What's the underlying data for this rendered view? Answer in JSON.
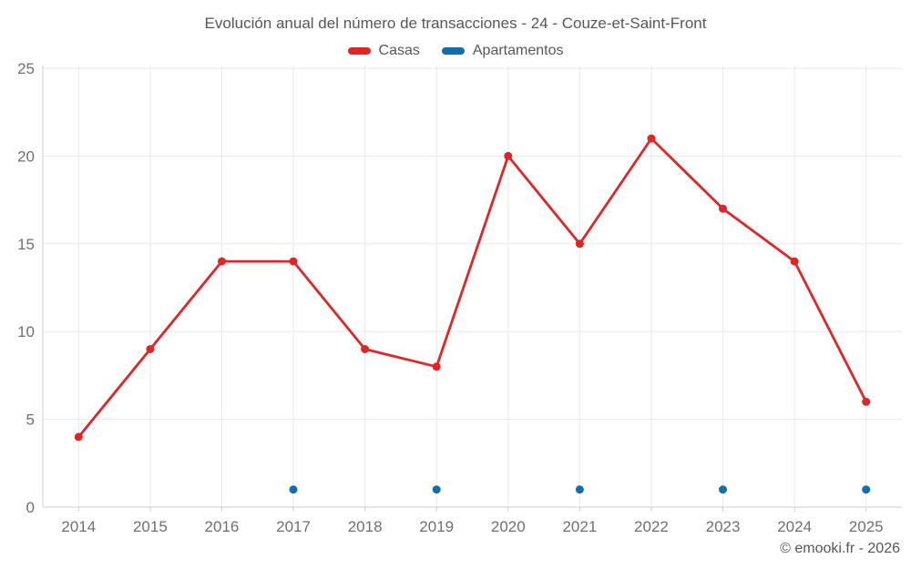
{
  "footer": {
    "copyright": "© emooki.fr - 2026"
  },
  "chart_data": {
    "type": "line",
    "title": "Evolución anual del número de transacciones - 24 - Couze-et-Saint-Front",
    "categories": [
      "2014",
      "2015",
      "2016",
      "2017",
      "2018",
      "2019",
      "2020",
      "2021",
      "2022",
      "2023",
      "2024",
      "2025"
    ],
    "series": [
      {
        "name": "Casas",
        "color": "#e02526",
        "show_line": true,
        "values": [
          4,
          9,
          14,
          14,
          9,
          8,
          20,
          15,
          21,
          17,
          14,
          6
        ]
      },
      {
        "name": "Apartamentos",
        "color": "#106ea8",
        "show_line": false,
        "values": [
          null,
          null,
          null,
          1,
          null,
          1,
          null,
          1,
          null,
          1,
          null,
          1
        ]
      }
    ],
    "xlabel": "",
    "ylabel": "",
    "ylim": [
      0,
      25
    ],
    "yticks": [
      0,
      5,
      10,
      15,
      20,
      25
    ],
    "grid": true,
    "legend_position": "top",
    "colors": {
      "grid": "#e9e9e9",
      "axis": "#cfcfcf",
      "tick_text": "#6f6f6f"
    }
  }
}
